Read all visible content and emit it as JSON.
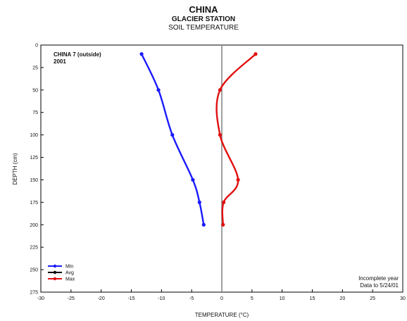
{
  "header": {
    "title": "CHINA",
    "subtitle": "GLACIER STATION",
    "subtitle2": "SOIL TEMPERATURE"
  },
  "chart_data": {
    "type": "line",
    "station_label": "CHINA 7 (outside)",
    "year_label": "2001",
    "xlabel": "TEMPERATURE (°C)",
    "ylabel": "DEPTH (cm)",
    "xlim": [
      -30,
      30
    ],
    "ylim": [
      0,
      275
    ],
    "y_inverted": true,
    "x_ticks": [
      -30,
      -25,
      -20,
      -15,
      -10,
      -5,
      0,
      5,
      10,
      15,
      20,
      25,
      30
    ],
    "y_ticks": [
      0,
      25,
      50,
      75,
      100,
      125,
      150,
      175,
      200,
      225,
      250,
      275
    ],
    "depths": [
      10,
      50,
      100,
      150,
      175,
      200
    ],
    "series": [
      {
        "name": "Min",
        "color": "#1a1aff",
        "values": [
          -13.3,
          -10.5,
          -8.2,
          -4.8,
          -3.7,
          -3.0
        ]
      },
      {
        "name": "Avg",
        "color": "#000000",
        "values": []
      },
      {
        "name": "Max",
        "color": "#e01010",
        "values": [
          5.6,
          -0.3,
          -0.3,
          2.7,
          0.3,
          0.2
        ]
      }
    ],
    "zero_line": true,
    "legend_position": "bottom-left",
    "note_lines": [
      "Incomplete year",
      "Data to 5/24/01"
    ]
  }
}
